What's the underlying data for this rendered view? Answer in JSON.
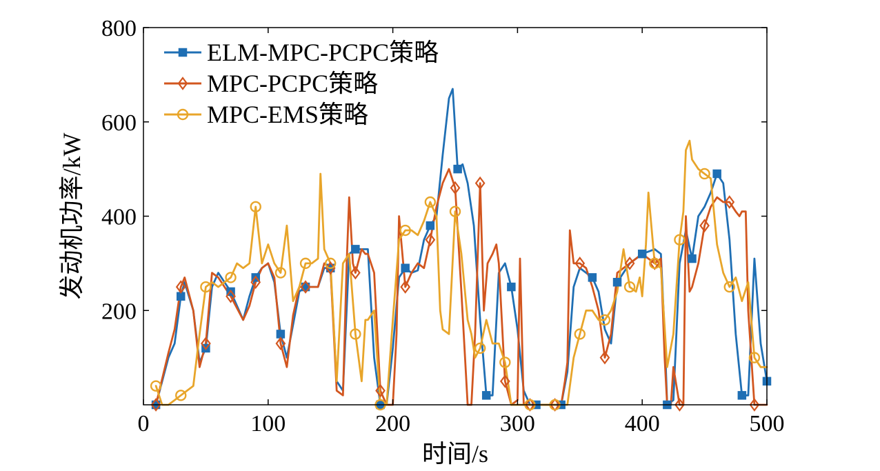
{
  "chart_data": {
    "type": "line",
    "title": "",
    "xlabel": "时间/s",
    "ylabel": "发动机功率/kW",
    "xlim": [
      0,
      500
    ],
    "ylim": [
      0,
      800
    ],
    "xticks": [
      0,
      100,
      200,
      300,
      400,
      500
    ],
    "yticks": [
      200,
      400,
      600,
      800
    ],
    "grid": false,
    "legend_position": "top-left",
    "series": [
      {
        "name": "ELM-MPC-PCPC策略",
        "color": "#1f6fb4",
        "marker": "square",
        "x": [
          10,
          20,
          25,
          30,
          33,
          40,
          45,
          50,
          55,
          60,
          70,
          80,
          85,
          90,
          95,
          100,
          105,
          110,
          115,
          120,
          125,
          130,
          140,
          145,
          150,
          155,
          160,
          165,
          170,
          175,
          180,
          185,
          190,
          195,
          200,
          205,
          210,
          215,
          220,
          225,
          230,
          235,
          240,
          245,
          248,
          252,
          256,
          260,
          265,
          270,
          275,
          280,
          285,
          290,
          295,
          300,
          305,
          310,
          315,
          320,
          325,
          330,
          335,
          340,
          345,
          350,
          360,
          365,
          370,
          375,
          380,
          390,
          400,
          410,
          415,
          418,
          420,
          425,
          430,
          435,
          440,
          445,
          450,
          455,
          460,
          465,
          470,
          475,
          480,
          485,
          490,
          495,
          500
        ],
        "y": [
          0,
          100,
          130,
          230,
          260,
          200,
          90,
          120,
          250,
          280,
          240,
          180,
          230,
          270,
          290,
          300,
          260,
          150,
          100,
          170,
          240,
          250,
          250,
          290,
          290,
          50,
          30,
          320,
          330,
          330,
          330,
          100,
          0,
          0,
          120,
          270,
          290,
          280,
          285,
          350,
          380,
          400,
          530,
          650,
          670,
          500,
          510,
          470,
          380,
          180,
          20,
          20,
          280,
          300,
          250,
          160,
          30,
          0,
          0,
          0,
          0,
          0,
          0,
          70,
          250,
          290,
          270,
          240,
          160,
          130,
          260,
          300,
          320,
          330,
          320,
          150,
          0,
          10,
          300,
          370,
          310,
          400,
          420,
          450,
          490,
          470,
          350,
          150,
          20,
          20,
          310,
          130,
          50
        ]
      },
      {
        "name": "MPC-PCPC策略",
        "color": "#d2561f",
        "marker": "diamond",
        "x": [
          10,
          20,
          25,
          30,
          33,
          40,
          45,
          50,
          55,
          60,
          70,
          80,
          85,
          90,
          95,
          100,
          105,
          110,
          115,
          120,
          125,
          130,
          140,
          145,
          150,
          155,
          160,
          163,
          165,
          168,
          170,
          175,
          178,
          180,
          185,
          190,
          195,
          200,
          203,
          205,
          210,
          215,
          220,
          225,
          230,
          235,
          240,
          245,
          250,
          255,
          260,
          263,
          266,
          270,
          273,
          276,
          280,
          283,
          285,
          290,
          295,
          300,
          302,
          305,
          308,
          310,
          315,
          320,
          325,
          330,
          335,
          338,
          340,
          342,
          345,
          350,
          355,
          360,
          365,
          370,
          375,
          380,
          390,
          400,
          405,
          410,
          415,
          418,
          420,
          423,
          425,
          430,
          433,
          435,
          438,
          440,
          445,
          450,
          455,
          460,
          465,
          470,
          475,
          478,
          480,
          483,
          485,
          490,
          495,
          500
        ],
        "y": [
          0,
          110,
          160,
          250,
          270,
          200,
          80,
          130,
          280,
          270,
          230,
          180,
          210,
          260,
          290,
          300,
          270,
          130,
          80,
          190,
          250,
          250,
          250,
          300,
          290,
          30,
          20,
          300,
          440,
          300,
          280,
          330,
          320,
          320,
          280,
          30,
          0,
          0,
          150,
          400,
          250,
          280,
          300,
          290,
          350,
          420,
          470,
          500,
          460,
          240,
          0,
          0,
          150,
          470,
          200,
          300,
          320,
          340,
          300,
          50,
          0,
          10,
          310,
          0,
          0,
          0,
          0,
          0,
          0,
          0,
          0,
          50,
          90,
          370,
          300,
          300,
          290,
          250,
          200,
          100,
          150,
          280,
          300,
          320,
          310,
          300,
          310,
          100,
          0,
          0,
          80,
          0,
          0,
          400,
          240,
          250,
          300,
          380,
          420,
          440,
          430,
          430,
          410,
          400,
          410,
          410,
          200,
          0,
          0,
          0
        ]
      },
      {
        "name": "MPC-EMS策略",
        "color": "#e8a52a",
        "marker": "circle",
        "x": [
          10,
          15,
          20,
          25,
          30,
          40,
          45,
          50,
          55,
          60,
          70,
          75,
          80,
          85,
          90,
          95,
          100,
          105,
          110,
          115,
          120,
          125,
          130,
          135,
          140,
          142,
          145,
          150,
          155,
          160,
          165,
          170,
          175,
          178,
          180,
          185,
          190,
          195,
          200,
          205,
          210,
          215,
          220,
          225,
          230,
          235,
          238,
          240,
          245,
          250,
          255,
          260,
          263,
          266,
          270,
          275,
          280,
          285,
          290,
          295,
          300,
          305,
          310,
          315,
          320,
          325,
          330,
          335,
          340,
          345,
          350,
          355,
          360,
          365,
          370,
          375,
          380,
          385,
          390,
          395,
          398,
          400,
          403,
          405,
          410,
          415,
          420,
          425,
          430,
          433,
          435,
          438,
          440,
          445,
          450,
          455,
          460,
          465,
          470,
          475,
          480,
          485,
          490,
          495,
          500
        ],
        "y": [
          40,
          0,
          0,
          10,
          20,
          40,
          150,
          250,
          260,
          250,
          270,
          300,
          290,
          300,
          420,
          300,
          340,
          300,
          280,
          380,
          220,
          250,
          300,
          300,
          310,
          490,
          330,
          300,
          50,
          300,
          320,
          150,
          50,
          180,
          180,
          200,
          0,
          0,
          180,
          350,
          370,
          370,
          360,
          390,
          430,
          400,
          200,
          160,
          150,
          410,
          320,
          180,
          150,
          100,
          120,
          180,
          130,
          130,
          90,
          0,
          0,
          0,
          0,
          0,
          0,
          0,
          0,
          0,
          0,
          100,
          150,
          200,
          200,
          180,
          180,
          200,
          240,
          330,
          250,
          240,
          270,
          230,
          340,
          450,
          300,
          290,
          80,
          150,
          350,
          410,
          540,
          560,
          520,
          500,
          490,
          480,
          340,
          280,
          250,
          270,
          220,
          260,
          100,
          80,
          80
        ]
      }
    ]
  }
}
